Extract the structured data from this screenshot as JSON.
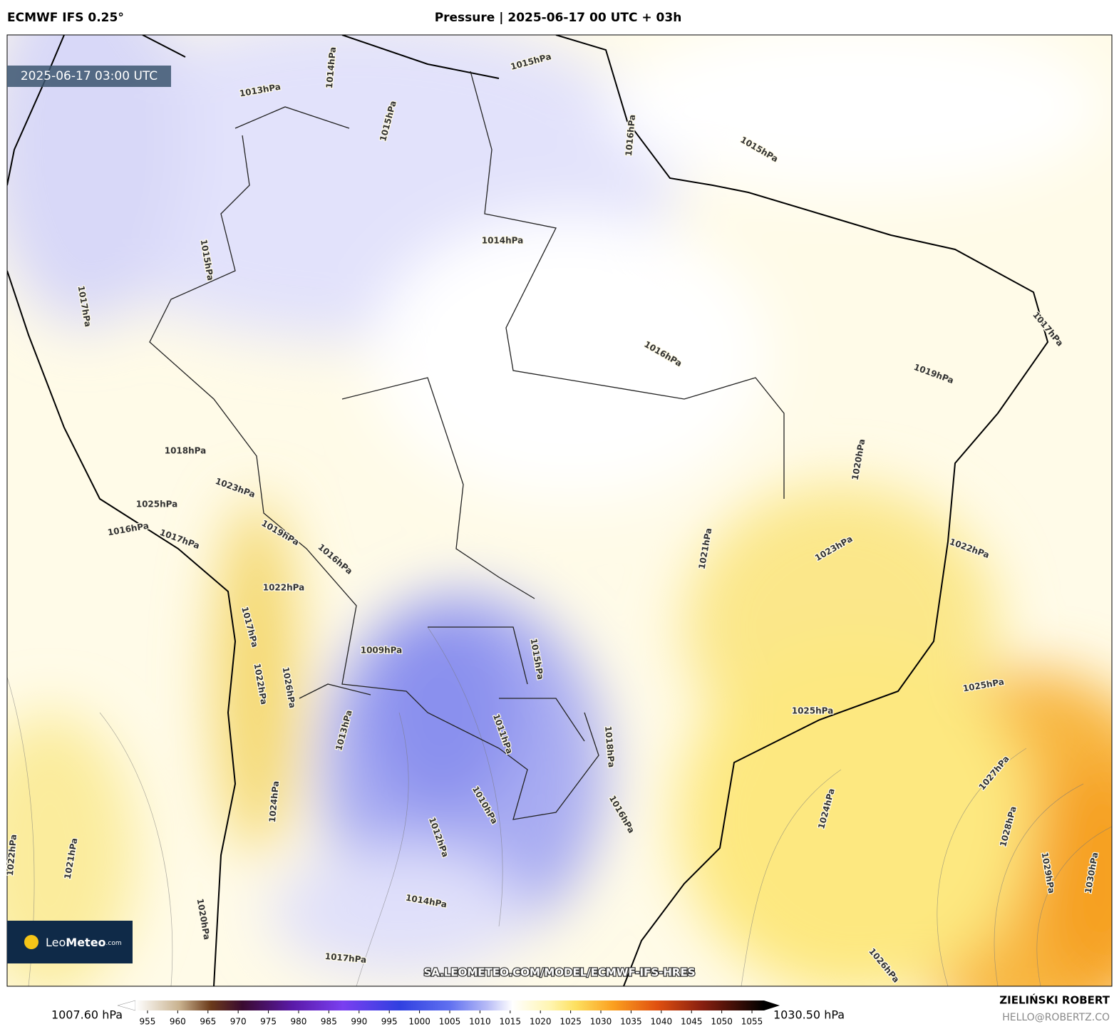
{
  "header": {
    "model": "ECMWF IFS 0.25°",
    "title": "Pressure | 2025-06-17 00 UTC + 03h",
    "valid_time": "2025-06-17 03:00 UTC"
  },
  "contour_labels": [
    "1014hPa",
    "1015hPa",
    "1016hPa",
    "1017hPa",
    "1019hPa",
    "1020hPa",
    "1021hPa",
    "1022hPa",
    "1023hPa",
    "1025hPa",
    "1025hPa",
    "1024hPa",
    "1027hPa",
    "1028hPa",
    "1029hPa",
    "1030hPa",
    "1026hPa",
    "1018hPa",
    "1016hPa",
    "1015hPa",
    "1011hPa",
    "1010hPa",
    "1012hPa",
    "1014hPa",
    "1017hPa",
    "1009hPa",
    "1013hPa",
    "1022hPa",
    "1019hPa",
    "1016hPa",
    "1023hPa",
    "1018hPa",
    "1025hPa",
    "1016hPa",
    "1017hPa",
    "1017hPa",
    "1015hPa",
    "1013hPa",
    "1014hPa",
    "1015hPa",
    "1016hPa",
    "1015hPa",
    "1021hPa",
    "1022hPa",
    "1017hPa",
    "1022hPa",
    "1026hPa",
    "1020hPa",
    "1024hPa"
  ],
  "colorbar": {
    "lim": [
      953,
      1057
    ],
    "ticks": [
      955,
      960,
      965,
      970,
      975,
      980,
      985,
      990,
      995,
      1000,
      1005,
      1010,
      1015,
      1020,
      1025,
      1030,
      1035,
      1040,
      1045,
      1050,
      1055
    ],
    "min_label": "1007.60 hPa",
    "max_label": "1030.50 hPa"
  },
  "logo": {
    "part1": "Leo",
    "part2": "Meteo",
    "part3": ".com"
  },
  "watermark": "SA.LEOMETEO.COM/MODEL/ECMWF-IFS-HRES",
  "credit": {
    "author": "ZIELIŃSKI ROBERT",
    "email": "HELLO@ROBERTZ.CO"
  }
}
